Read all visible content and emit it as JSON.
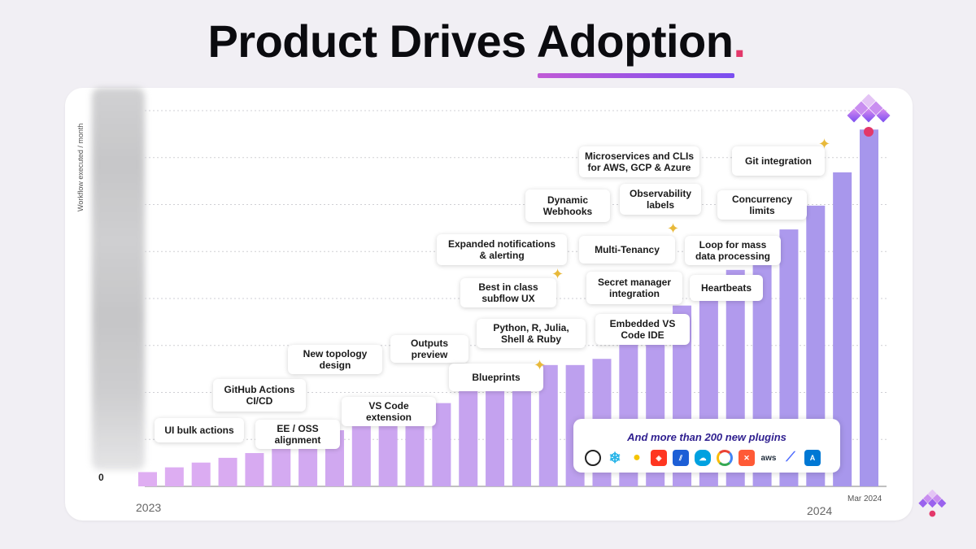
{
  "title": "Product Drives Adoption",
  "title_dot": ".",
  "chart_data": {
    "type": "bar",
    "title": "Product Drives Adoption",
    "ylabel": "Workflow executed / month",
    "ytick_zero": "0",
    "x_start_label": "2023",
    "x_end_label": "2024",
    "last_bar_label": "Mar 2024",
    "values": [
      3,
      4,
      5,
      6,
      7,
      8.8,
      10.5,
      11.8,
      13.2,
      14.5,
      16,
      17.5,
      20,
      22.5,
      25,
      25.5,
      25.5,
      26.8,
      30.5,
      34,
      38,
      42,
      45.5,
      50.5,
      54,
      59,
      66,
      75
    ],
    "ylim": [
      0,
      80
    ],
    "bar_color_start": "#dfaef2",
    "bar_color_end": "#a696ec"
  },
  "annotations": [
    {
      "id": "ui-bulk-actions",
      "text": "UI bulk actions"
    },
    {
      "id": "github-actions",
      "text": "GitHub Actions\nCI/CD"
    },
    {
      "id": "new-topology",
      "text": "New topology\ndesign"
    },
    {
      "id": "ee-oss",
      "text": "EE / OSS\nalignment"
    },
    {
      "id": "vs-code-extension",
      "text": "VS Code\nextension"
    },
    {
      "id": "outputs-preview",
      "text": "Outputs\npreview"
    },
    {
      "id": "blueprints",
      "text": "Blueprints"
    },
    {
      "id": "python-r-julia",
      "text": "Python, R, Julia,\nShell & Ruby"
    },
    {
      "id": "best-in-class-subflow",
      "text": "Best in class\nsubflow UX"
    },
    {
      "id": "expanded-notifications",
      "text": "Expanded notifications\n& alerting"
    },
    {
      "id": "dynamic-webhooks",
      "text": "Dynamic\nWebhooks"
    },
    {
      "id": "microservices-clis",
      "text": "Microservices and CLIs\nfor AWS, GCP & Azure"
    },
    {
      "id": "observability-labels",
      "text": "Observability\nlabels"
    },
    {
      "id": "multi-tenancy",
      "text": "Multi-Tenancy"
    },
    {
      "id": "secret-manager",
      "text": "Secret manager\nintegration"
    },
    {
      "id": "embedded-vs-code",
      "text": "Embedded VS\nCode IDE"
    },
    {
      "id": "git-integration",
      "text": "Git integration"
    },
    {
      "id": "concurrency-limits",
      "text": "Concurrency\nlimits"
    },
    {
      "id": "loop-mass-data",
      "text": "Loop for mass\ndata processing"
    },
    {
      "id": "heartbeats",
      "text": "Heartbeats"
    }
  ],
  "plugins": {
    "title": "And more than 200 new plugins",
    "icons": [
      "openai-icon",
      "snowflake-icon",
      "sensor-icon",
      "databricks-icon",
      "dbt-icon",
      "salesforce-icon",
      "google-cloud-icon",
      "airbyte-icon",
      "aws-icon",
      "fivetran-icon",
      "azure-icon"
    ],
    "aws_label": "aws"
  },
  "colors": {
    "accent_dot": "#e3386a",
    "underline_start": "#c05ad6",
    "underline_end": "#7a4ef0",
    "plugin_title": "#2f1f8f",
    "sparkle": "#e8b93a"
  }
}
